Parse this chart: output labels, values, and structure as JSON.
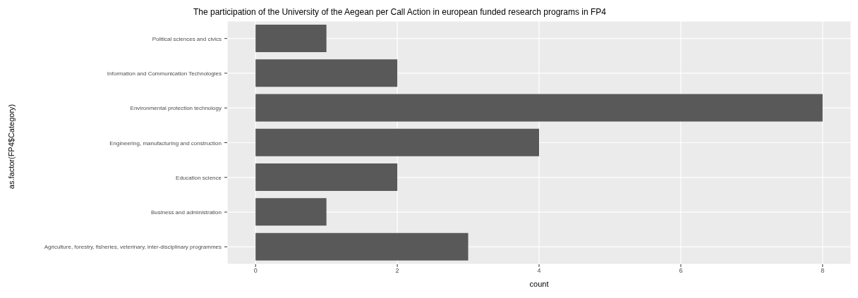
{
  "chart_data": {
    "type": "bar",
    "orientation": "horizontal",
    "title": "The participation of the University of the Aegean per Call Action in european funded research programs in FP4",
    "xlabel": "count",
    "ylabel": "as.factor(FP4$Category)",
    "categories": [
      "Political sciences and civics",
      "Information and Communication Technologies",
      "Environmental protection technology",
      "Engineering, manufacturing and construction",
      "Education science",
      "Business and administration",
      "Agriculture, forestry, fisheries, veterinary, inter-disciplinary programmes"
    ],
    "values": [
      1,
      2,
      8,
      4,
      2,
      1,
      3
    ],
    "color": "#595959",
    "xlim": [
      -0.4,
      8.4
    ],
    "xticks": [
      0,
      2,
      4,
      6,
      8
    ],
    "grid": true
  }
}
